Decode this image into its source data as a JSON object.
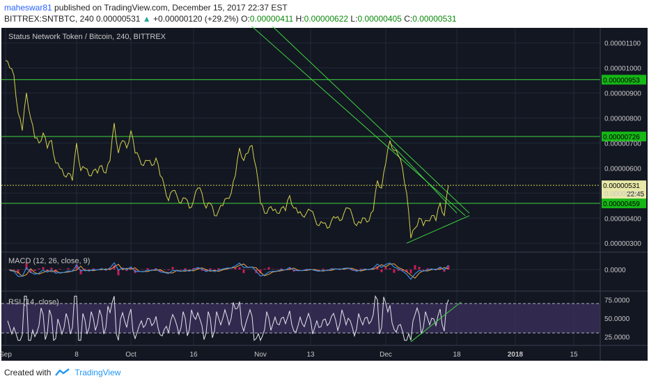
{
  "header": {
    "author": "maheswar81",
    "published": "published on TradingView.com, December 15, 2017 22:37 EST",
    "symbol": "BITTREX:SNTBTC, 240",
    "last": "0.00000531",
    "change": "+0.00000120 (+29.2%)",
    "o_label": "O:",
    "o": "0.00000411",
    "h_label": "H:",
    "h": "0.00000622",
    "l_label": "L:",
    "l": "0.00000405",
    "c_label": "C:",
    "c": "0.00000531"
  },
  "footer": {
    "created_with": "Created with",
    "brand": "TradingView"
  },
  "colors": {
    "background": "#131722",
    "price_line": "#d4d44a",
    "trend_line": "#3fd63f",
    "macd_line": "#3a8ee6",
    "signal_line": "#f4a63c",
    "histogram": "#e91e63",
    "rsi_line": "#e6e6ee",
    "rsi_band": "#3a2f5a"
  },
  "chart_data": [
    {
      "type": "line",
      "title": "Status Network Token / Bitcoin, 240, BITTREX",
      "y_ticks": [
        "0.00001100",
        "0.00001000",
        "0.00000900",
        "0.00000800",
        "0.00000700",
        "0.00000600",
        "0.00000500",
        "0.00000400",
        "0.00000300"
      ],
      "x_ticks": [
        "Sep",
        "8",
        "Oct",
        "16",
        "Nov",
        "13",
        "Dec",
        "18",
        "2018",
        "15"
      ],
      "x_tick_dates": [
        "2017-09-01",
        "2017-09-18",
        "2017-10-01",
        "2017-10-16",
        "2017-11-01",
        "2017-11-13",
        "2017-12-01",
        "2017-12-18",
        "2018-01-01",
        "2018-01-15"
      ],
      "ylim": [
        2.7e-06,
        1.16e-05
      ],
      "series": [
        {
          "points": [
            [
              "2017-09-01",
              1.03e-05
            ],
            [
              "2017-09-02",
              1e-05
            ],
            [
              "2017-09-03",
              9.7e-06
            ],
            [
              "2017-09-04",
              8.2e-06
            ],
            [
              "2017-09-05",
              7.5e-06
            ],
            [
              "2017-09-06",
              9e-06
            ],
            [
              "2017-09-07",
              8e-06
            ],
            [
              "2017-09-08",
              7.2e-06
            ],
            [
              "2017-09-09",
              7e-06
            ],
            [
              "2017-09-10",
              7.4e-06
            ],
            [
              "2017-09-11",
              6.8e-06
            ],
            [
              "2017-09-12",
              7.1e-06
            ],
            [
              "2017-09-13",
              6.2e-06
            ],
            [
              "2017-09-14",
              6e-06
            ],
            [
              "2017-09-15",
              5.7e-06
            ],
            [
              "2017-09-16",
              5.8e-06
            ],
            [
              "2017-09-17",
              5.5e-06
            ],
            [
              "2017-09-18",
              7e-06
            ],
            [
              "2017-09-19",
              5.9e-06
            ],
            [
              "2017-09-20",
              6e-06
            ],
            [
              "2017-09-21",
              5.7e-06
            ],
            [
              "2017-09-22",
              5.9e-06
            ],
            [
              "2017-09-23",
              5.8e-06
            ],
            [
              "2017-09-24",
              6.1e-06
            ],
            [
              "2017-09-25",
              5.8e-06
            ],
            [
              "2017-09-26",
              6.3e-06
            ],
            [
              "2017-09-27",
              7.8e-06
            ],
            [
              "2017-09-28",
              6.6e-06
            ],
            [
              "2017-09-29",
              7.1e-06
            ],
            [
              "2017-09-30",
              6.8e-06
            ],
            [
              "2017-10-01",
              7.5e-06
            ],
            [
              "2017-10-02",
              6.6e-06
            ],
            [
              "2017-10-03",
              6.4e-06
            ],
            [
              "2017-10-04",
              6.1e-06
            ],
            [
              "2017-10-05",
              6.3e-06
            ],
            [
              "2017-10-06",
              6.1e-06
            ],
            [
              "2017-10-07",
              6.4e-06
            ],
            [
              "2017-10-08",
              5.7e-06
            ],
            [
              "2017-10-09",
              5.3e-06
            ],
            [
              "2017-10-10",
              4.7e-06
            ],
            [
              "2017-10-11",
              5.1e-06
            ],
            [
              "2017-10-12",
              4.9e-06
            ],
            [
              "2017-10-13",
              4.6e-06
            ],
            [
              "2017-10-14",
              4.8e-06
            ],
            [
              "2017-10-15",
              4.4e-06
            ],
            [
              "2017-10-16",
              4.7e-06
            ],
            [
              "2017-10-17",
              5.2e-06
            ],
            [
              "2017-10-18",
              5e-06
            ],
            [
              "2017-10-19",
              4.4e-06
            ],
            [
              "2017-10-20",
              4.6e-06
            ],
            [
              "2017-10-21",
              4.1e-06
            ],
            [
              "2017-10-22",
              4.3e-06
            ],
            [
              "2017-10-23",
              4.5e-06
            ],
            [
              "2017-10-24",
              4.8e-06
            ],
            [
              "2017-10-25",
              5e-06
            ],
            [
              "2017-10-26",
              5.7e-06
            ],
            [
              "2017-10-27",
              6.8e-06
            ],
            [
              "2017-10-28",
              6.3e-06
            ],
            [
              "2017-10-29",
              6.6e-06
            ],
            [
              "2017-10-30",
              6.9e-06
            ],
            [
              "2017-10-31",
              6e-06
            ],
            [
              "2017-11-01",
              4.6e-06
            ],
            [
              "2017-11-02",
              4.2e-06
            ],
            [
              "2017-11-03",
              4.4e-06
            ],
            [
              "2017-11-04",
              4.3e-06
            ],
            [
              "2017-11-05",
              4.2e-06
            ],
            [
              "2017-11-06",
              4.4e-06
            ],
            [
              "2017-11-07",
              4.3e-06
            ],
            [
              "2017-11-08",
              4.9e-06
            ],
            [
              "2017-11-09",
              4.4e-06
            ],
            [
              "2017-11-10",
              4.2e-06
            ],
            [
              "2017-11-11",
              4.1e-06
            ],
            [
              "2017-11-12",
              4.2e-06
            ],
            [
              "2017-11-13",
              4.3e-06
            ],
            [
              "2017-11-14",
              4e-06
            ],
            [
              "2017-11-15",
              3.7e-06
            ],
            [
              "2017-11-16",
              3.8e-06
            ],
            [
              "2017-11-17",
              3.6e-06
            ],
            [
              "2017-11-18",
              3.9e-06
            ],
            [
              "2017-11-19",
              4e-06
            ],
            [
              "2017-11-20",
              3.9e-06
            ],
            [
              "2017-11-21",
              4.2e-06
            ],
            [
              "2017-11-22",
              4.4e-06
            ],
            [
              "2017-11-23",
              4.1e-06
            ],
            [
              "2017-11-24",
              3.7e-06
            ],
            [
              "2017-11-25",
              3.8e-06
            ],
            [
              "2017-11-26",
              4e-06
            ],
            [
              "2017-11-27",
              3.9e-06
            ],
            [
              "2017-11-28",
              4.3e-06
            ],
            [
              "2017-11-29",
              5.5e-06
            ],
            [
              "2017-11-30",
              5.2e-06
            ],
            [
              "2017-12-01",
              6.2e-06
            ],
            [
              "2017-12-02",
              7.1e-06
            ],
            [
              "2017-12-03",
              6.7e-06
            ],
            [
              "2017-12-04",
              6.5e-06
            ],
            [
              "2017-12-05",
              6e-06
            ],
            [
              "2017-12-06",
              5e-06
            ],
            [
              "2017-12-07",
              3.2e-06
            ],
            [
              "2017-12-08",
              3.6e-06
            ],
            [
              "2017-12-09",
              4e-06
            ],
            [
              "2017-12-10",
              3.7e-06
            ],
            [
              "2017-12-11",
              3.9e-06
            ],
            [
              "2017-12-12",
              4.1e-06
            ],
            [
              "2017-12-13",
              3.9e-06
            ],
            [
              "2017-12-14",
              4.6e-06
            ],
            [
              "2017-12-15",
              4.1e-06
            ],
            [
              "2017-12-16",
              5.31e-06
            ]
          ]
        }
      ],
      "annotations": [
        {
          "type": "horizontal-line",
          "y": 9.53e-06,
          "label": "0.00000953"
        },
        {
          "type": "horizontal-line",
          "y": 7.26e-06,
          "label": "0.00000726"
        },
        {
          "type": "horizontal-line",
          "y": 4.59e-06,
          "label": "0.00000459"
        },
        {
          "type": "price-line",
          "y": 5.31e-06,
          "label": "0.00000531",
          "time_label": "22:45"
        },
        {
          "type": "trendline",
          "from": [
            "2017-10-29",
            1.18e-05
          ],
          "to": [
            "2017-12-20",
            4.1e-06
          ]
        },
        {
          "type": "trendline",
          "from": [
            "2017-11-03",
            1.18e-05
          ],
          "to": [
            "2017-12-21",
            4.2e-06
          ]
        },
        {
          "type": "trendline",
          "from": [
            "2017-12-02",
            7e-06
          ],
          "to": [
            "2017-12-18",
            4.2e-06
          ]
        },
        {
          "type": "trendline",
          "from": [
            "2017-12-06",
            3e-06
          ],
          "to": [
            "2017-12-21",
            4.1e-06
          ]
        }
      ]
    },
    {
      "type": "line",
      "title": "MACD (12, 26, close, 9)",
      "y_ticks": [
        "0.0000"
      ],
      "note": "MACD, signal and histogram oscillating around zero"
    },
    {
      "type": "line",
      "title": "RSI (14, close)",
      "y_ticks": [
        "75.0000",
        "50.0000",
        "25.0000"
      ],
      "ylim": [
        15,
        85
      ],
      "bands": [
        30,
        70
      ],
      "annotations": [
        {
          "type": "trendline",
          "from": [
            "2017-12-07",
            18
          ],
          "to": [
            "2017-12-19",
            72
          ]
        }
      ]
    }
  ]
}
